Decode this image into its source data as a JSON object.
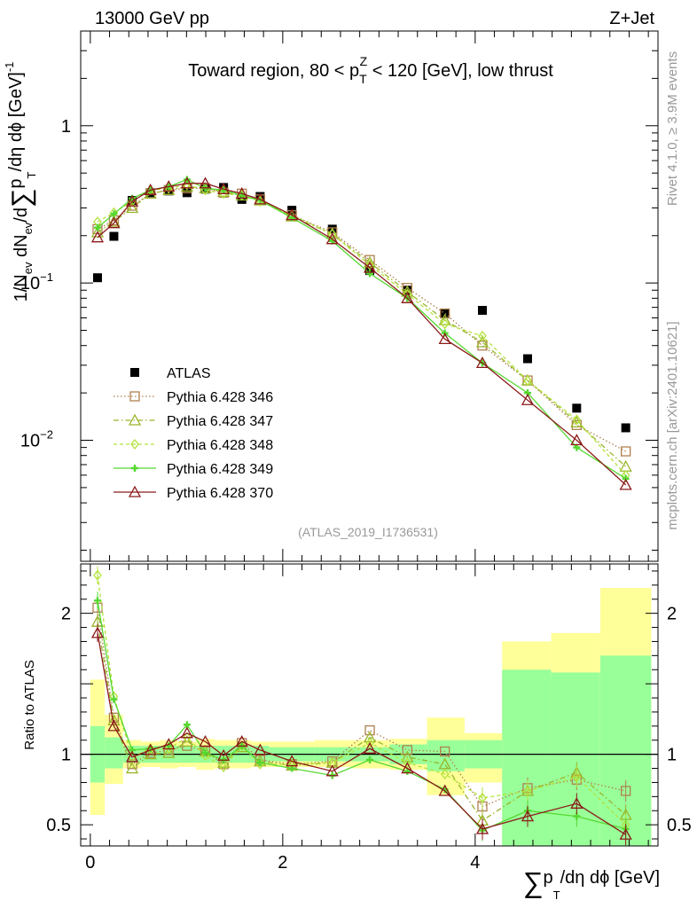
{
  "header": {
    "left": "13000 GeV pp",
    "right": "Z+Jet",
    "rivet": "Rivet 4.1.0, ≥ 3.9M events",
    "mcplots": "mcplots.cern.ch [arXiv:2401.10621]",
    "analysis_id": "(ATLAS_2019_I1736531)"
  },
  "chart_data": [
    {
      "type": "scatter",
      "title": "Toward region, 80 < p_T^Z < 120 [GeV], low thrust",
      "title_parts": {
        "pre": "Toward region, 80 < p",
        "sub": "T",
        "sup": "Z",
        "post": " < 120 [GeV], low thrust"
      },
      "ylabel": "1/N_ev dN_ev/d∑p_T/dη dϕ [GeV]^-1",
      "ylabel_parts": {
        "a": "1/N",
        "a_sub": "ev",
        "b": " dN",
        "b_sub": "ev",
        "c": "/d",
        "sum": "∑",
        "d": "p",
        "d_sub": "T",
        "e": "/dη dϕ  [GeV]",
        "e_sup": "-1"
      },
      "yscale": "log",
      "ylim": [
        0.0017,
        4.0
      ],
      "xlim": [
        -0.1,
        5.9
      ],
      "yticks": [
        {
          "value": 1,
          "label": "1"
        },
        {
          "value": 0.1,
          "label_base": "10",
          "label_exp": "−1"
        },
        {
          "value": 0.01,
          "label_base": "10",
          "label_exp": "−2"
        }
      ],
      "x": [
        0.075,
        0.245,
        0.435,
        0.625,
        0.815,
        1.005,
        1.195,
        1.385,
        1.575,
        1.765,
        2.095,
        2.515,
        2.905,
        3.295,
        3.685,
        4.075,
        4.545,
        5.055,
        5.565
      ],
      "series": [
        {
          "name": "ATLAS",
          "color": "#000000",
          "marker": "square-filled",
          "dash": "none",
          "values": [
            0.108,
            0.198,
            0.335,
            0.375,
            0.385,
            0.375,
            0.395,
            0.405,
            0.34,
            0.355,
            0.29,
            0.22,
            0.12,
            0.09,
            0.064,
            0.067,
            0.033,
            0.016,
            0.012
          ]
        },
        {
          "name": "Pythia 6.428 346",
          "color": "#b08050",
          "marker": "square-open",
          "dash": "1.5,2.5",
          "values": [
            0.22,
            0.25,
            0.31,
            0.37,
            0.39,
            0.4,
            0.4,
            0.375,
            0.37,
            0.34,
            0.27,
            0.21,
            0.14,
            0.093,
            0.064,
            0.04,
            0.024,
            0.0125,
            0.0085
          ]
        },
        {
          "name": "Pythia 6.428 347",
          "color": "#9ab52a",
          "marker": "triangle-open",
          "dash": "6,3,1.5,3",
          "values": [
            0.21,
            0.245,
            0.3,
            0.37,
            0.39,
            0.41,
            0.4,
            0.38,
            0.36,
            0.335,
            0.265,
            0.205,
            0.135,
            0.088,
            0.058,
            0.042,
            0.024,
            0.013,
            0.0068
          ]
        },
        {
          "name": "Pythia 6.428 348",
          "color": "#b3e23c",
          "marker": "diamond-open",
          "dash": "4,3",
          "values": [
            0.245,
            0.28,
            0.33,
            0.39,
            0.4,
            0.42,
            0.39,
            0.37,
            0.36,
            0.33,
            0.27,
            0.205,
            0.13,
            0.085,
            0.055,
            0.046,
            0.024,
            0.0135,
            0.006
          ]
        },
        {
          "name": "Pythia 6.428 349",
          "color": "#55d82f",
          "marker": "cross",
          "dash": "none",
          "values": [
            0.225,
            0.275,
            0.345,
            0.39,
            0.41,
            0.455,
            0.4,
            0.39,
            0.36,
            0.335,
            0.26,
            0.185,
            0.115,
            0.08,
            0.048,
            0.031,
            0.02,
            0.009,
            0.0057
          ]
        },
        {
          "name": "Pythia 6.428 370",
          "color": "#8b1a1a",
          "marker": "triangle-open",
          "dash": "none",
          "values": [
            0.195,
            0.24,
            0.33,
            0.39,
            0.41,
            0.43,
            0.43,
            0.395,
            0.37,
            0.34,
            0.27,
            0.19,
            0.125,
            0.08,
            0.044,
            0.031,
            0.018,
            0.01,
            0.0052
          ]
        }
      ],
      "legend": "upper-left"
    },
    {
      "type": "scatter",
      "ylabel": "Ratio to ATLAS",
      "xlabel": "∑p_T/dη dϕ [GeV]",
      "xlabel_parts": {
        "sum": "∑",
        "p": "p",
        "p_sub": "T",
        "rest": "/dη dϕ [GeV]"
      },
      "ylim": [
        0.35,
        2.35
      ],
      "xlim": [
        -0.1,
        5.9
      ],
      "xticks": [
        0,
        2,
        4
      ],
      "yticks": [
        0.5,
        1,
        2
      ],
      "reference": 1.0,
      "bins": [
        [
          0.0,
          0.15
        ],
        [
          0.15,
          0.34
        ],
        [
          0.34,
          0.53
        ],
        [
          0.53,
          0.72
        ],
        [
          0.72,
          0.91
        ],
        [
          0.91,
          1.1
        ],
        [
          1.1,
          1.29
        ],
        [
          1.29,
          1.48
        ],
        [
          1.48,
          1.67
        ],
        [
          1.67,
          1.86
        ],
        [
          1.86,
          2.33
        ],
        [
          2.33,
          2.72
        ],
        [
          2.72,
          3.11
        ],
        [
          3.11,
          3.5
        ],
        [
          3.5,
          3.89
        ],
        [
          3.89,
          4.28
        ],
        [
          4.28,
          4.79
        ],
        [
          4.79,
          5.3
        ],
        [
          5.3,
          5.83
        ]
      ],
      "band_total": [
        [
          0.57,
          1.53
        ],
        [
          0.79,
          1.28
        ],
        [
          0.9,
          1.1
        ],
        [
          0.91,
          1.09
        ],
        [
          0.9,
          1.1
        ],
        [
          0.91,
          1.09
        ],
        [
          0.89,
          1.11
        ],
        [
          0.9,
          1.1
        ],
        [
          0.9,
          1.1
        ],
        [
          0.91,
          1.09
        ],
        [
          0.91,
          1.09
        ],
        [
          0.91,
          1.1
        ],
        [
          0.9,
          1.1
        ],
        [
          0.89,
          1.11
        ],
        [
          0.71,
          1.26
        ],
        [
          0.8,
          1.15
        ],
        [
          0.35,
          1.8
        ],
        [
          0.35,
          1.86
        ],
        [
          0.35,
          2.18
        ]
      ],
      "band_stat": [
        [
          0.8,
          1.2
        ],
        [
          0.9,
          1.12
        ],
        [
          0.94,
          1.06
        ],
        [
          0.94,
          1.06
        ],
        [
          0.94,
          1.06
        ],
        [
          0.94,
          1.06
        ],
        [
          0.94,
          1.06
        ],
        [
          0.94,
          1.06
        ],
        [
          0.94,
          1.06
        ],
        [
          0.94,
          1.06
        ],
        [
          0.95,
          1.05
        ],
        [
          0.95,
          1.05
        ],
        [
          0.95,
          1.05
        ],
        [
          0.93,
          1.07
        ],
        [
          0.88,
          1.1
        ],
        [
          0.9,
          1.1
        ],
        [
          0.35,
          1.6
        ],
        [
          0.35,
          1.58
        ],
        [
          0.35,
          1.7
        ]
      ],
      "series": [
        {
          "name": "Pythia 6.428 346",
          "color": "#b08050",
          "marker": "square-open",
          "dash": "1.5,2.5",
          "values": [
            2.04,
            1.26,
            0.93,
            1.01,
            1.03,
            1.06,
            1.02,
            0.93,
            1.08,
            0.96,
            0.93,
            0.95,
            1.17,
            1.03,
            1.02,
            0.63,
            0.76,
            0.82,
            0.74
          ]
        },
        {
          "name": "Pythia 6.428 347",
          "color": "#9ab52a",
          "marker": "triangle-open",
          "dash": "6,3,1.5,3",
          "values": [
            1.94,
            1.24,
            0.9,
            1.0,
            1.01,
            1.09,
            1.02,
            0.94,
            1.05,
            0.95,
            0.92,
            0.94,
            1.12,
            0.98,
            0.93,
            0.53,
            0.74,
            0.87,
            0.57
          ]
        },
        {
          "name": "Pythia 6.428 348",
          "color": "#b3e23c",
          "marker": "diamond-open",
          "dash": "4,3",
          "values": [
            2.27,
            1.41,
            0.98,
            1.04,
            1.04,
            1.12,
            0.99,
            0.91,
            1.06,
            0.93,
            0.93,
            0.94,
            1.08,
            0.94,
            0.86,
            0.69,
            0.74,
            0.84,
            0.5
          ]
        },
        {
          "name": "Pythia 6.428 349",
          "color": "#55d82f",
          "marker": "cross",
          "dash": "none",
          "values": [
            2.09,
            1.39,
            1.03,
            1.04,
            1.06,
            1.21,
            1.01,
            0.96,
            1.06,
            0.94,
            0.9,
            0.85,
            0.96,
            0.88,
            0.75,
            0.46,
            0.6,
            0.56,
            0.47
          ]
        },
        {
          "name": "Pythia 6.428 370",
          "color": "#8b1a1a",
          "marker": "triangle-open",
          "dash": "none",
          "values": [
            1.86,
            1.2,
            0.98,
            1.03,
            1.07,
            1.15,
            1.09,
            0.99,
            1.09,
            1.03,
            0.95,
            0.88,
            1.04,
            0.9,
            0.74,
            0.47,
            0.56,
            0.65,
            0.43
          ]
        }
      ]
    }
  ]
}
